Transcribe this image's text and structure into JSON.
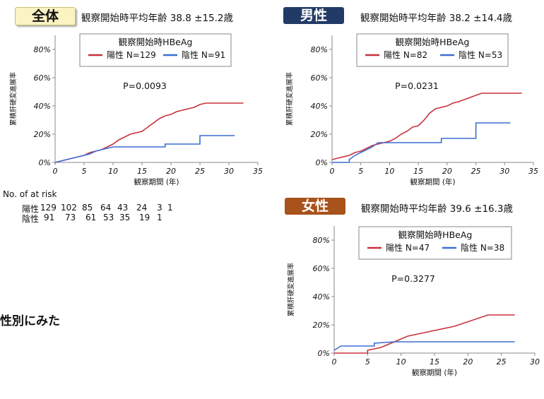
{
  "labels": {
    "all": "全体",
    "male": "男性",
    "female": "女性",
    "side_note": "性別にみた"
  },
  "subtitles": {
    "all": "観察開始時平均年齢 38.8 ±15.2歳",
    "male": "観察開始時平均年齢 38.2 ±14.4歳",
    "female": "観察開始時平均年齢 39.6 ±16.3歳"
  },
  "risk_table": {
    "title": "No. of at risk",
    "rows": [
      {
        "label": "陽性",
        "values": [
          "129",
          "102",
          "85",
          "64",
          "43",
          "24",
          "3",
          "1"
        ]
      },
      {
        "label": "陰性",
        "values": [
          "91",
          "73",
          "61",
          "53",
          "35",
          "19",
          "1"
        ]
      }
    ]
  },
  "colors": {
    "positive": "#c8323c",
    "negative": "#3b6fd4"
  },
  "chart_data": [
    {
      "id": "all",
      "type": "line",
      "title": "",
      "xlabel": "観察期間 (年)",
      "ylabel": "累積肝硬変進展率",
      "xlim": [
        0,
        35
      ],
      "ylim": [
        0,
        90
      ],
      "xticks": [
        "0",
        "5",
        "10",
        "15",
        "20",
        "25",
        "30",
        "35"
      ],
      "yticks": [
        "0%",
        "20%",
        "40%",
        "60%",
        "80%"
      ],
      "legend_title": "観察開始時HBeAg",
      "pvalue": "P=0.0093",
      "series": [
        {
          "name": "陽性 N=129",
          "color": "#c8323c",
          "points": [
            [
              0,
              0
            ],
            [
              1,
              1
            ],
            [
              2,
              2
            ],
            [
              3,
              3
            ],
            [
              4,
              4
            ],
            [
              5,
              5
            ],
            [
              6,
              7
            ],
            [
              7,
              8
            ],
            [
              8,
              9
            ],
            [
              9,
              11
            ],
            [
              10,
              13
            ],
            [
              11,
              16
            ],
            [
              12,
              18
            ],
            [
              13,
              20
            ],
            [
              14,
              21
            ],
            [
              15,
              22
            ],
            [
              16,
              25
            ],
            [
              17,
              28
            ],
            [
              18,
              31
            ],
            [
              19,
              33
            ],
            [
              20,
              34
            ],
            [
              21,
              36
            ],
            [
              22,
              37
            ],
            [
              23,
              38
            ],
            [
              24,
              39
            ],
            [
              25,
              41
            ],
            [
              26,
              42
            ],
            [
              32.5,
              42
            ]
          ]
        },
        {
          "name": "陰性 N=91",
          "color": "#3b6fd4",
          "points": [
            [
              0,
              0
            ],
            [
              1,
              1
            ],
            [
              2,
              2
            ],
            [
              3,
              3
            ],
            [
              4,
              4
            ],
            [
              5,
              5
            ],
            [
              6,
              6
            ],
            [
              7,
              8
            ],
            [
              8,
              9
            ],
            [
              9,
              10
            ],
            [
              10,
              11
            ],
            [
              19,
              11
            ],
            [
              19,
              13
            ],
            [
              25,
              13
            ],
            [
              25,
              19
            ],
            [
              31,
              19
            ]
          ]
        }
      ]
    },
    {
      "id": "male",
      "type": "line",
      "title": "",
      "xlabel": "観察期間 (年)",
      "ylabel": "累積肝硬変進展率",
      "xlim": [
        0,
        35
      ],
      "ylim": [
        0,
        90
      ],
      "xticks": [
        "0",
        "5",
        "10",
        "15",
        "20",
        "25",
        "30",
        "35"
      ],
      "yticks": [
        "0%",
        "20%",
        "40%",
        "60%",
        "80%"
      ],
      "legend_title": "観察開始時HBeAg",
      "pvalue": "P=0.0231",
      "series": [
        {
          "name": "陽性 N=82",
          "color": "#c8323c",
          "points": [
            [
              0,
              2
            ],
            [
              1,
              3
            ],
            [
              2,
              4
            ],
            [
              3,
              5
            ],
            [
              4,
              7
            ],
            [
              5,
              8
            ],
            [
              6,
              10
            ],
            [
              7,
              12
            ],
            [
              8,
              13
            ],
            [
              10,
              15
            ],
            [
              11,
              17
            ],
            [
              12,
              20
            ],
            [
              13,
              22
            ],
            [
              14,
              25
            ],
            [
              15,
              26
            ],
            [
              16,
              30
            ],
            [
              17,
              35
            ],
            [
              18,
              38
            ],
            [
              20,
              40
            ],
            [
              21,
              42
            ],
            [
              22,
              43
            ],
            [
              24,
              46
            ],
            [
              26,
              49
            ],
            [
              33,
              49
            ]
          ]
        },
        {
          "name": "陰性 N=53",
          "color": "#3b6fd4",
          "points": [
            [
              0,
              0
            ],
            [
              3,
              0
            ],
            [
              3,
              2
            ],
            [
              4,
              5
            ],
            [
              5,
              7
            ],
            [
              6,
              9
            ],
            [
              7,
              11
            ],
            [
              8,
              14
            ],
            [
              19,
              14
            ],
            [
              19,
              17
            ],
            [
              25,
              17
            ],
            [
              25,
              28
            ],
            [
              31,
              28
            ]
          ]
        }
      ]
    },
    {
      "id": "female",
      "type": "line",
      "title": "",
      "xlabel": "観察期間 (年)",
      "ylabel": "累積肝硬変進展率",
      "xlim": [
        0,
        30
      ],
      "ylim": [
        0,
        90
      ],
      "xticks": [
        "0",
        "5",
        "10",
        "15",
        "20",
        "25",
        "30"
      ],
      "yticks": [
        "0%",
        "20%",
        "40%",
        "60%",
        "80%"
      ],
      "legend_title": "観察開始時HBeAg",
      "pvalue": "P=0.3277",
      "series": [
        {
          "name": "陽性 N=47",
          "color": "#c8323c",
          "points": [
            [
              0,
              0
            ],
            [
              5,
              0
            ],
            [
              5,
              2
            ],
            [
              7,
              4
            ],
            [
              8,
              6
            ],
            [
              9,
              8
            ],
            [
              10,
              10
            ],
            [
              11,
              12
            ],
            [
              14,
              15
            ],
            [
              18,
              19
            ],
            [
              23,
              27
            ],
            [
              27,
              27
            ]
          ]
        },
        {
          "name": "陰性 N=38",
          "color": "#3b6fd4",
          "points": [
            [
              0,
              2
            ],
            [
              1,
              5
            ],
            [
              6,
              5
            ],
            [
              6,
              7
            ],
            [
              9,
              8
            ],
            [
              27,
              8
            ]
          ]
        }
      ]
    }
  ]
}
